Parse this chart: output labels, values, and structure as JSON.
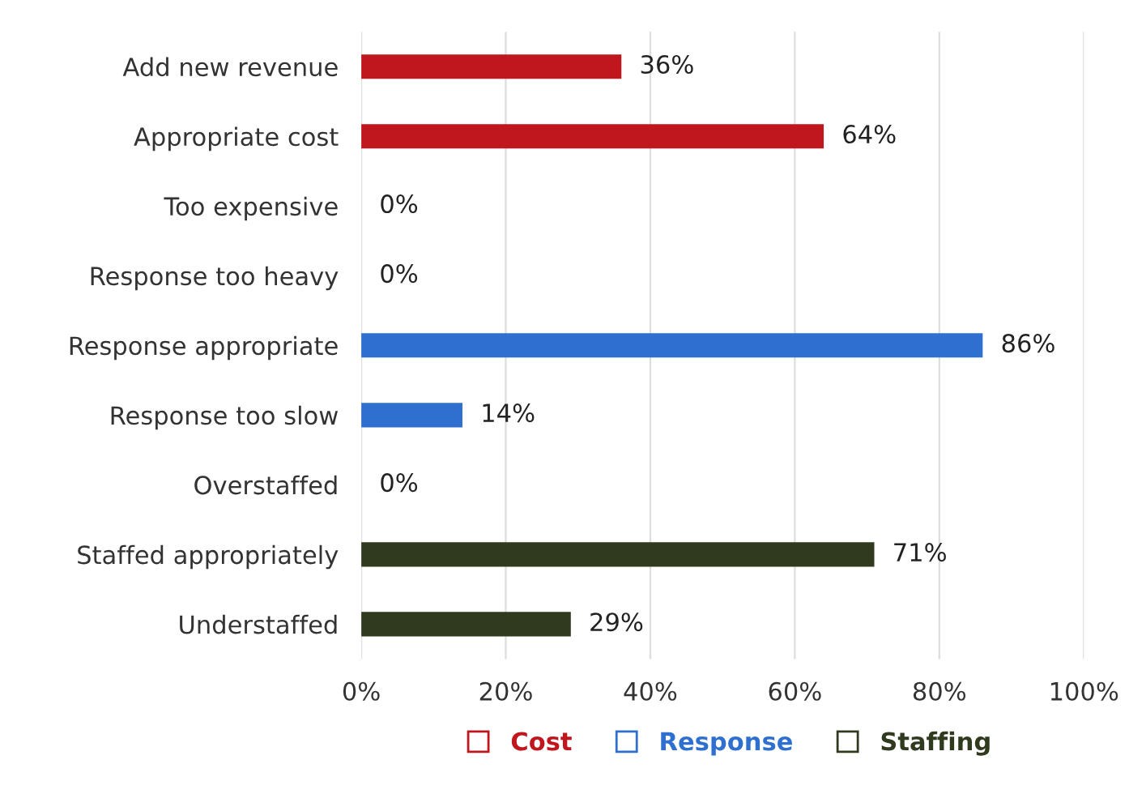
{
  "chart_data": {
    "type": "bar",
    "orientation": "horizontal",
    "categories": [
      "Add new revenue",
      "Appropriate cost",
      "Too expensive",
      "Response too heavy",
      "Response appropriate",
      "Response too slow",
      "Overstaffed",
      "Staffed appropriately",
      "Understaffed"
    ],
    "series": [
      {
        "name": "Cost",
        "color": "#c0161e",
        "values": [
          36,
          64,
          0,
          null,
          null,
          null,
          null,
          null,
          null
        ],
        "value_labels": [
          "36%",
          "64%",
          "0%",
          null,
          null,
          null,
          null,
          null,
          null
        ]
      },
      {
        "name": "Response",
        "color": "#2e6fd0",
        "values": [
          null,
          null,
          null,
          0,
          86,
          14,
          null,
          null,
          null
        ],
        "value_labels": [
          null,
          null,
          null,
          "0%",
          "86%",
          "14%",
          null,
          null,
          null
        ]
      },
      {
        "name": "Staffing",
        "color": "#2f3a1e",
        "values": [
          null,
          null,
          null,
          null,
          null,
          null,
          0,
          71,
          29
        ],
        "value_labels": [
          null,
          null,
          null,
          null,
          null,
          null,
          "0%",
          "71%",
          "29%"
        ]
      }
    ],
    "xlim": [
      0,
      100
    ],
    "xticks": [
      {
        "value": 0,
        "label": "0%"
      },
      {
        "value": 20,
        "label": "20%"
      },
      {
        "value": 40,
        "label": "40%"
      },
      {
        "value": 60,
        "label": "60%"
      },
      {
        "value": 80,
        "label": "80%"
      },
      {
        "value": 100,
        "label": "100%"
      }
    ],
    "grid": "x",
    "legend": "bottom"
  }
}
